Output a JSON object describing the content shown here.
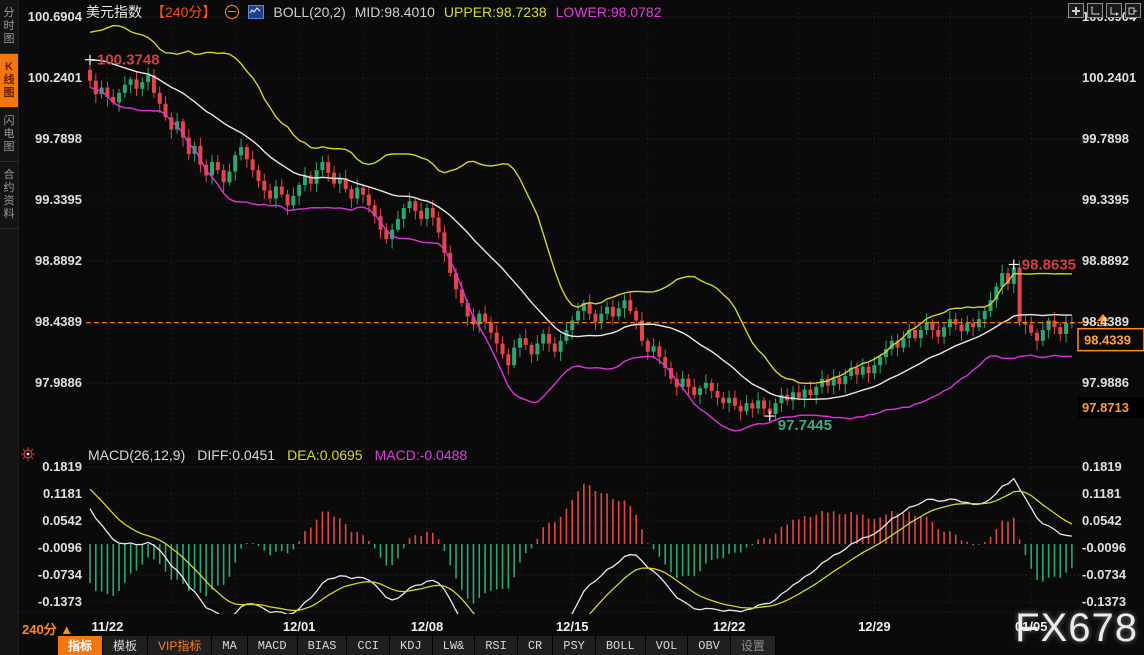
{
  "header": {
    "symbol": "美元指数",
    "period": "【240分】",
    "boll_label": "BOLL(20,2)",
    "mid_label": "MID:98.4010",
    "upper_label": "UPPER:98.7238",
    "lower_label": "LOWER:98.0782"
  },
  "sidebar": {
    "tabs": [
      {
        "label": "分时图",
        "active": false
      },
      {
        "label": "K线图",
        "active": true
      },
      {
        "label": "闪电图",
        "active": false
      },
      {
        "label": "合约资料",
        "active": false
      }
    ]
  },
  "macd_header": {
    "title": "MACD(26,12,9)",
    "diff_label": "DIFF:0.0451",
    "dea_label": "DEA:0.0695",
    "macd_label": "MACD:-0.0488"
  },
  "axes": {
    "main_labels": [
      "100.6904",
      "100.2401",
      "99.7898",
      "99.3395",
      "98.8892",
      "98.4389",
      "97.9886"
    ],
    "macd_labels": [
      "0.1819",
      "0.1181",
      "0.0542",
      "-0.0096",
      "-0.0734",
      "-0.1373"
    ],
    "current_price": "98.4339",
    "low_marker": "97.8713"
  },
  "annotations": {
    "high_start": "100.3748",
    "high_recent": "98.8635",
    "low": "97.7445"
  },
  "bottom": {
    "period": "240分",
    "period_arrow": "▲",
    "toolbar": [
      {
        "label": "指标",
        "style": "active",
        "cjk": true
      },
      {
        "label": "模板",
        "style": "normal",
        "cjk": true
      },
      {
        "label": "VIP指标",
        "style": "vip",
        "cjk": true
      },
      {
        "label": "MA",
        "style": "normal",
        "cjk": false
      },
      {
        "label": "MACD",
        "style": "normal",
        "cjk": false
      },
      {
        "label": "BIAS",
        "style": "normal",
        "cjk": false
      },
      {
        "label": "CCI",
        "style": "normal",
        "cjk": false
      },
      {
        "label": "KDJ",
        "style": "normal",
        "cjk": false
      },
      {
        "label": "LW&",
        "style": "normal",
        "cjk": false
      },
      {
        "label": "RSI",
        "style": "normal",
        "cjk": false
      },
      {
        "label": "CR",
        "style": "normal",
        "cjk": false
      },
      {
        "label": "PSY",
        "style": "normal",
        "cjk": false
      },
      {
        "label": "BOLL",
        "style": "normal",
        "cjk": false
      },
      {
        "label": "VOL",
        "style": "normal",
        "cjk": false
      },
      {
        "label": "OBV",
        "style": "normal",
        "cjk": false
      },
      {
        "label": "设置",
        "style": "dim",
        "cjk": true
      }
    ]
  },
  "watermark": "FX678",
  "colors": {
    "up": "#2aa874",
    "down": "#e64545",
    "boll_upper": "#d4d42a",
    "boll_mid": "#e8e8e8",
    "boll_lower": "#dd33dd",
    "accent_orange": "#ff8c1a",
    "annotation_red": "#cf4040",
    "annotation_green": "#3faa7f",
    "grid": "#303030",
    "axis_text": "#e0e0e0"
  },
  "chart_data": {
    "type": "candlestick",
    "title": "美元指数 240分 K线 + BOLL(20,2) + MACD(26,12,9)",
    "ylim": [
      97.7445,
      100.6904
    ],
    "macd_ylim": [
      -0.1373,
      0.1819
    ],
    "boll": {
      "period": 20,
      "k": 2,
      "mid": 98.401,
      "upper": 98.7238,
      "lower": 98.0782
    },
    "macd_values": {
      "diff": 0.0451,
      "dea": 0.0695,
      "macd": -0.0488
    },
    "current_price": 98.4339,
    "session_low_marker": 97.8713,
    "open_first": 100.3,
    "specials": {
      "0": {
        "high": 100.3748
      },
      "117": {
        "low": 97.7445
      },
      "159": {
        "high": 98.8635
      }
    },
    "date_ticks": [
      {
        "i": 3,
        "label": "11/22"
      },
      {
        "i": 36,
        "label": "12/01"
      },
      {
        "i": 58,
        "label": "12/08"
      },
      {
        "i": 83,
        "label": "12/15"
      },
      {
        "i": 110,
        "label": "12/22"
      },
      {
        "i": 135,
        "label": "12/29"
      },
      {
        "i": 162,
        "label": "01/05"
      }
    ],
    "grid_indices": [
      3,
      14,
      25,
      36,
      47,
      58,
      70,
      83,
      96,
      110,
      122,
      135,
      148,
      162
    ],
    "closes": [
      100.22,
      100.12,
      100.17,
      100.1,
      100.06,
      100.13,
      100.19,
      100.23,
      100.16,
      100.21,
      100.26,
      100.13,
      100.05,
      99.95,
      99.86,
      99.92,
      99.8,
      99.68,
      99.74,
      99.6,
      99.52,
      99.62,
      99.56,
      99.47,
      99.55,
      99.67,
      99.73,
      99.64,
      99.56,
      99.48,
      99.41,
      99.35,
      99.44,
      99.38,
      99.3,
      99.37,
      99.45,
      99.52,
      99.46,
      99.56,
      99.62,
      99.54,
      99.46,
      99.5,
      99.42,
      99.35,
      99.43,
      99.38,
      99.3,
      99.22,
      99.12,
      99.05,
      99.12,
      99.2,
      99.28,
      99.33,
      99.26,
      99.2,
      99.28,
      99.21,
      99.1,
      98.95,
      98.8,
      98.68,
      98.58,
      98.48,
      98.42,
      98.5,
      98.44,
      98.36,
      98.28,
      98.2,
      98.12,
      98.25,
      98.32,
      98.27,
      98.2,
      98.28,
      98.35,
      98.28,
      98.22,
      98.3,
      98.38,
      98.45,
      98.52,
      98.58,
      98.5,
      98.44,
      98.5,
      98.55,
      98.48,
      98.54,
      98.6,
      98.52,
      98.45,
      98.3,
      98.22,
      98.26,
      98.18,
      98.1,
      98.02,
      97.96,
      98.02,
      97.96,
      97.9,
      97.95,
      97.99,
      97.93,
      97.88,
      97.84,
      97.88,
      97.82,
      97.78,
      97.84,
      97.8,
      97.86,
      97.8,
      97.76,
      97.84,
      97.9,
      97.86,
      97.92,
      97.88,
      97.94,
      97.9,
      97.96,
      98.02,
      97.97,
      98.03,
      97.98,
      98.04,
      98.1,
      98.05,
      98.11,
      98.06,
      98.12,
      98.18,
      98.24,
      98.3,
      98.25,
      98.32,
      98.38,
      98.32,
      98.38,
      98.44,
      98.38,
      98.33,
      98.4,
      98.46,
      98.42,
      98.37,
      98.43,
      98.4,
      98.46,
      98.52,
      98.6,
      98.7,
      98.8,
      98.72,
      98.84,
      98.44,
      98.42,
      98.36,
      98.3,
      98.38,
      98.45,
      98.4,
      98.35,
      98.43,
      98.4339
    ]
  }
}
